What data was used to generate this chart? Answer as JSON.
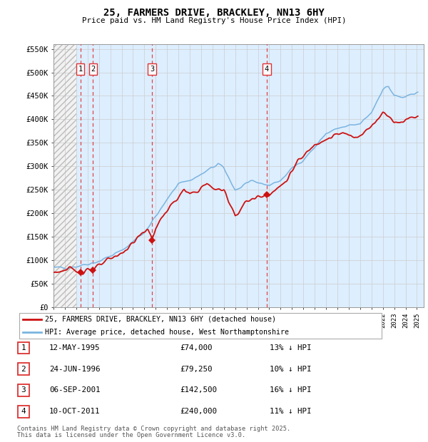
{
  "title": "25, FARMERS DRIVE, BRACKLEY, NN13 6HY",
  "subtitle": "Price paid vs. HM Land Registry's House Price Index (HPI)",
  "legend_line1": "25, FARMERS DRIVE, BRACKLEY, NN13 6HY (detached house)",
  "legend_line2": "HPI: Average price, detached house, West Northamptonshire",
  "footer1": "Contains HM Land Registry data © Crown copyright and database right 2025.",
  "footer2": "This data is licensed under the Open Government Licence v3.0.",
  "sales": [
    {
      "num": 1,
      "date_num": 1995.36,
      "price": 74000,
      "label": "12-MAY-1995",
      "pct": "13% ↓ HPI"
    },
    {
      "num": 2,
      "date_num": 1996.48,
      "price": 79250,
      "label": "24-JUN-1996",
      "pct": "10% ↓ HPI"
    },
    {
      "num": 3,
      "date_num": 2001.68,
      "price": 142500,
      "label": "06-SEP-2001",
      "pct": "16% ↓ HPI"
    },
    {
      "num": 4,
      "date_num": 2011.78,
      "price": 240000,
      "label": "10-OCT-2011",
      "pct": "11% ↓ HPI"
    }
  ],
  "hpi_color": "#7ab4e0",
  "price_color": "#cc1111",
  "marker_color": "#cc1111",
  "dashed_color": "#dd3333",
  "grid_color": "#cccccc",
  "bg_plot": "#ddeeff",
  "ylim": [
    0,
    560000
  ],
  "xlim_start": 1993.0,
  "xlim_end": 2025.6,
  "yticks": [
    0,
    50000,
    100000,
    150000,
    200000,
    250000,
    300000,
    350000,
    400000,
    450000,
    500000,
    550000
  ],
  "ytick_labels": [
    "£0",
    "£50K",
    "£100K",
    "£150K",
    "£200K",
    "£250K",
    "£300K",
    "£350K",
    "£400K",
    "£450K",
    "£500K",
    "£550K"
  ],
  "xticks": [
    1993,
    1994,
    1995,
    1996,
    1997,
    1998,
    1999,
    2000,
    2001,
    2002,
    2003,
    2004,
    2005,
    2006,
    2007,
    2008,
    2009,
    2010,
    2011,
    2012,
    2013,
    2014,
    2015,
    2016,
    2017,
    2018,
    2019,
    2020,
    2021,
    2022,
    2023,
    2024,
    2025
  ],
  "hatch_end": 1995.0
}
